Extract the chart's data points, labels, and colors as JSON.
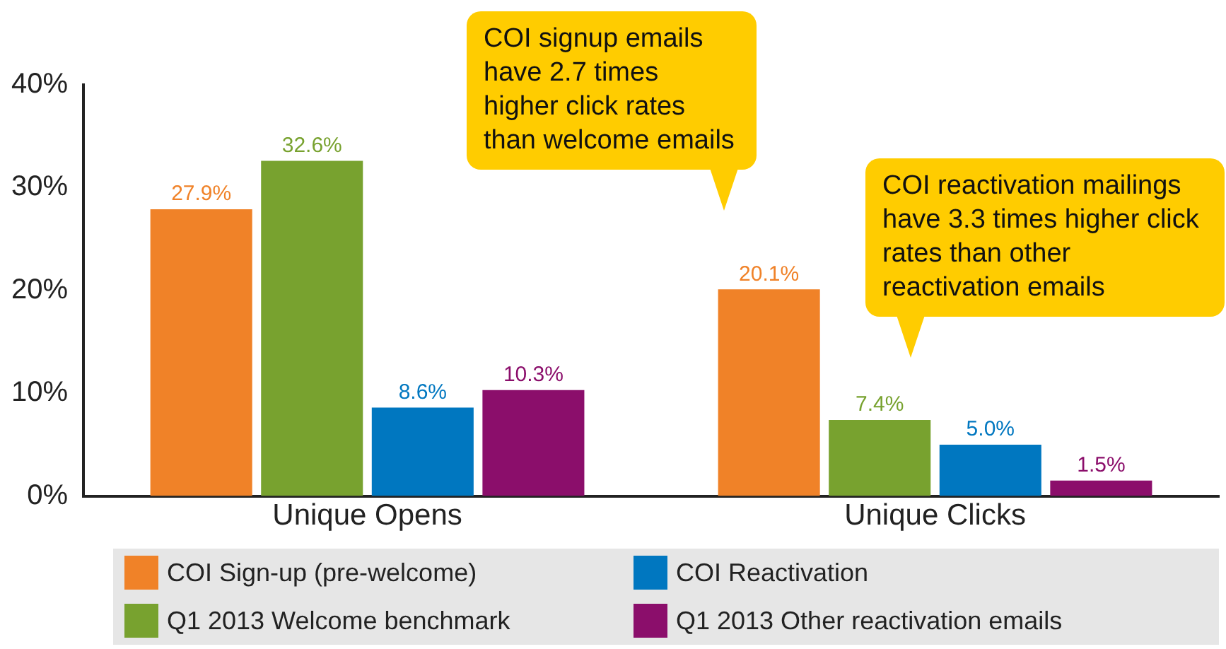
{
  "chart_data": {
    "type": "bar",
    "categories": [
      "Unique Opens",
      "Unique Clicks"
    ],
    "series": [
      {
        "name": "COI Sign-up (pre-welcome)",
        "color": "#f08228",
        "values": [
          27.9,
          20.1
        ],
        "value_labels": [
          "27.9%",
          "20.1%"
        ]
      },
      {
        "name": "Q1 2013 Welcome benchmark",
        "color": "#78a22f",
        "values": [
          32.6,
          7.4
        ],
        "value_labels": [
          "32.6%",
          "7.4%"
        ]
      },
      {
        "name": "COI Reactivation",
        "color": "#0077c0",
        "values": [
          8.6,
          5.0
        ],
        "value_labels": [
          "8.6%",
          "5.0%"
        ]
      },
      {
        "name": "Q1 2013 Other reactivation emails",
        "color": "#8b0e6b",
        "values": [
          10.3,
          1.5
        ],
        "value_labels": [
          "10.3%",
          "1.5%"
        ]
      }
    ],
    "ylim": [
      0,
      40
    ],
    "yticks": [
      {
        "value": 0,
        "label": "0%"
      },
      {
        "value": 10,
        "label": "10%"
      },
      {
        "value": 20,
        "label": "20%"
      },
      {
        "value": 30,
        "label": "30%"
      },
      {
        "value": 40,
        "label": "40%"
      }
    ],
    "grid": false,
    "legend": "bottom",
    "annotations": [
      "COI signup emails have 2.7 times higher click rates than welcome emails",
      "COI reactivation mailings have 3.3 times higher click rates than other reactivation emails"
    ]
  }
}
